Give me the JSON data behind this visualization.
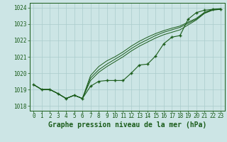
{
  "title": "Graphe pression niveau de la mer (hPa)",
  "background_color": "#cce5e5",
  "grid_color": "#aacccc",
  "line_color": "#1a5c1a",
  "xlim": [
    -0.5,
    23.5
  ],
  "ylim": [
    1017.7,
    1024.3
  ],
  "yticks": [
    1018,
    1019,
    1020,
    1021,
    1022,
    1023,
    1024
  ],
  "xticks": [
    0,
    1,
    2,
    3,
    4,
    5,
    6,
    7,
    8,
    9,
    10,
    11,
    12,
    13,
    14,
    15,
    16,
    17,
    18,
    19,
    20,
    21,
    22,
    23
  ],
  "marker_y": [
    1019.3,
    1019.0,
    1019.0,
    1018.75,
    1018.45,
    1018.65,
    1018.45,
    1019.2,
    1019.5,
    1019.55,
    1019.55,
    1019.55,
    1020.0,
    1020.5,
    1020.55,
    1021.05,
    1021.8,
    1022.2,
    1022.3,
    1023.3,
    1023.7,
    1023.85,
    1023.9,
    1023.9
  ],
  "smooth1_y": [
    1019.3,
    1019.0,
    1019.0,
    1018.75,
    1018.45,
    1018.65,
    1018.45,
    1019.55,
    1020.05,
    1020.4,
    1020.7,
    1021.0,
    1021.35,
    1021.65,
    1021.9,
    1022.15,
    1022.35,
    1022.5,
    1022.65,
    1022.95,
    1023.25,
    1023.65,
    1023.85,
    1023.9
  ],
  "smooth2_y": [
    1019.3,
    1019.0,
    1019.0,
    1018.75,
    1018.45,
    1018.65,
    1018.45,
    1019.7,
    1020.2,
    1020.55,
    1020.85,
    1021.15,
    1021.5,
    1021.8,
    1022.05,
    1022.3,
    1022.5,
    1022.65,
    1022.8,
    1023.05,
    1023.3,
    1023.68,
    1023.88,
    1023.92
  ],
  "smooth3_y": [
    1019.3,
    1019.0,
    1019.0,
    1018.75,
    1018.45,
    1018.65,
    1018.45,
    1019.85,
    1020.4,
    1020.75,
    1021.0,
    1021.3,
    1021.65,
    1021.95,
    1022.2,
    1022.42,
    1022.6,
    1022.75,
    1022.88,
    1023.12,
    1023.35,
    1023.72,
    1023.9,
    1023.95
  ],
  "title_fontsize": 7,
  "tick_fontsize": 5.5
}
